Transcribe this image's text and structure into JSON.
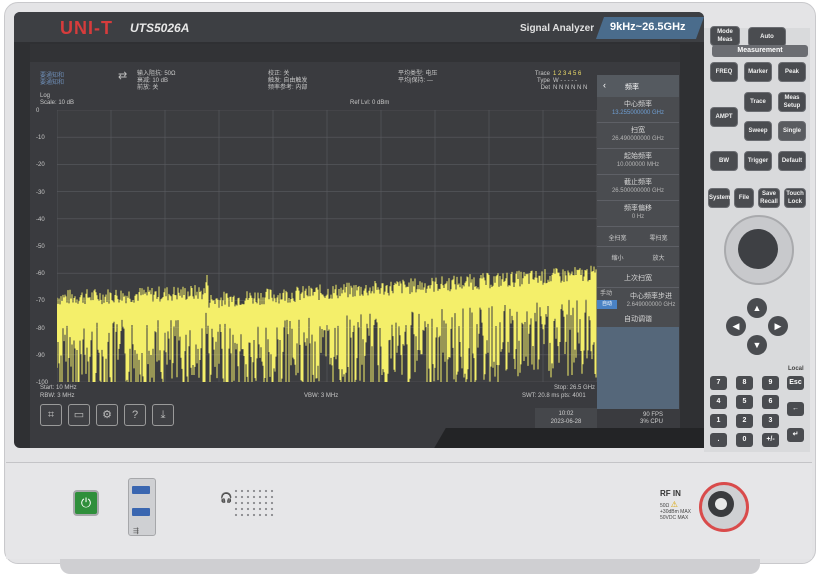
{
  "header": {
    "brand": "UNI-T",
    "model": "UTS5026A",
    "instrument_type": "Signal Analyzer",
    "freq_range": "9kHz~26.5GHz"
  },
  "status": {
    "left_tag_1": "要通知和",
    "left_tag_2": "要通知和",
    "input_imp": "输入阻抗: 50Ω",
    "atten": "衰减: 10 dB",
    "preamp": "前放: 关",
    "corr": "校正: 关",
    "trig": "触发: 自由触发",
    "ref_src": "频率参考: 内部",
    "avg": "平均类型: 电压",
    "avg2": "平均|保持: —",
    "trace_label": "Trace",
    "type_label": "Type",
    "det_label": "Det",
    "trace_nums": "1 2 3 4 5 6",
    "trace_type": "W - - - - -",
    "det_vals": "N N N N N N"
  },
  "plot": {
    "scale_type": "Log",
    "scale": "Scale: 10 dB",
    "ref_level": "Ref Lvl: 0 dBm",
    "y_ticks": [
      "0",
      "-10",
      "-20",
      "-30",
      "-40",
      "-50",
      "-60",
      "-70",
      "-80",
      "-90",
      "-100"
    ],
    "start": "Start: 10 MHz",
    "rbw": "RBW: 3 MHz",
    "vbw": "VBW: 3 MHz",
    "stop": "Stop: 26.5 GHz",
    "swt": "SWT: 20.8 ms   pts: 4001",
    "trace_color": "#f4ef6a"
  },
  "menu": {
    "title": "频率",
    "center_label": "中心频率",
    "center_value": "13.255000000 GHz",
    "span_label": "扫宽",
    "span_value": "26.490000000 GHz",
    "start_label": "起始频率",
    "start_value": "10.000000 MHz",
    "stop_label": "截止频率",
    "stop_value": "26.500000000 GHz",
    "offset_label": "频率偏移",
    "offset_value": "0 Hz",
    "full_span": "全扫宽",
    "zero_span": "零扫宽",
    "zoom_out": "缩小",
    "zoom_in": "放大",
    "last_span": "上次扫宽",
    "manual": "手动",
    "auto": "自动",
    "cf_step_label": "中心频率步进",
    "cf_step_value": "2.649000000 GHz",
    "auto_tune": "自动调谐"
  },
  "footer": {
    "time": "10:02",
    "date": "2023-06-28",
    "fps": "90 FPS",
    "cpu": "3% CPU"
  },
  "panel": {
    "mode_meas": "Mode Meas",
    "auto": "Auto",
    "measurement": "Measurement",
    "freq": "FREQ",
    "marker": "Marker",
    "peak": "Peak",
    "trace": "Trace",
    "meas_setup": "Meas Setup",
    "ampt": "AMPT",
    "sweep": "Sweep",
    "single": "Single",
    "bw": "BW",
    "trigger": "Trigger",
    "default": "Default",
    "system": "System",
    "file": "File",
    "save_recall": "Save Recall",
    "touch_lock": "Touch Lock",
    "local": "Local",
    "esc": "Esc",
    "keys": [
      "7",
      "8",
      "9",
      "4",
      "5",
      "6",
      "1",
      "2",
      "3",
      ".",
      "0",
      "+/-"
    ]
  },
  "front": {
    "rf_in": "RF IN",
    "rf_sub": "50Ω",
    "rf_spec": "+30dBm MAX\n50VDC MAX"
  }
}
